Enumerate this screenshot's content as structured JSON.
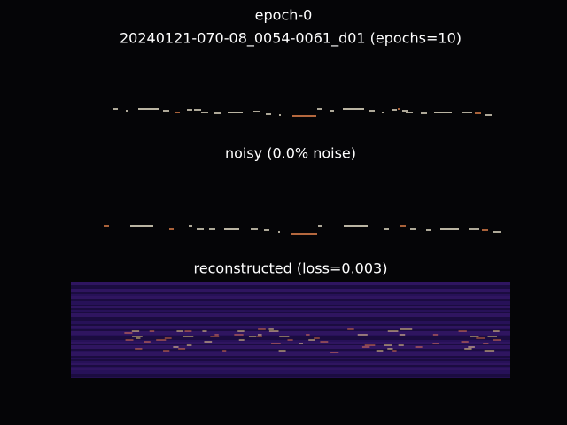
{
  "header": {
    "title": "epoch-0",
    "subtitle": "20240121-070-08_0054-0061_d01 (epochs=10)"
  },
  "panels": [
    {
      "label": "noisy (0.0% noise)"
    },
    {
      "label": "reconstructed (loss=0.003)"
    }
  ]
}
